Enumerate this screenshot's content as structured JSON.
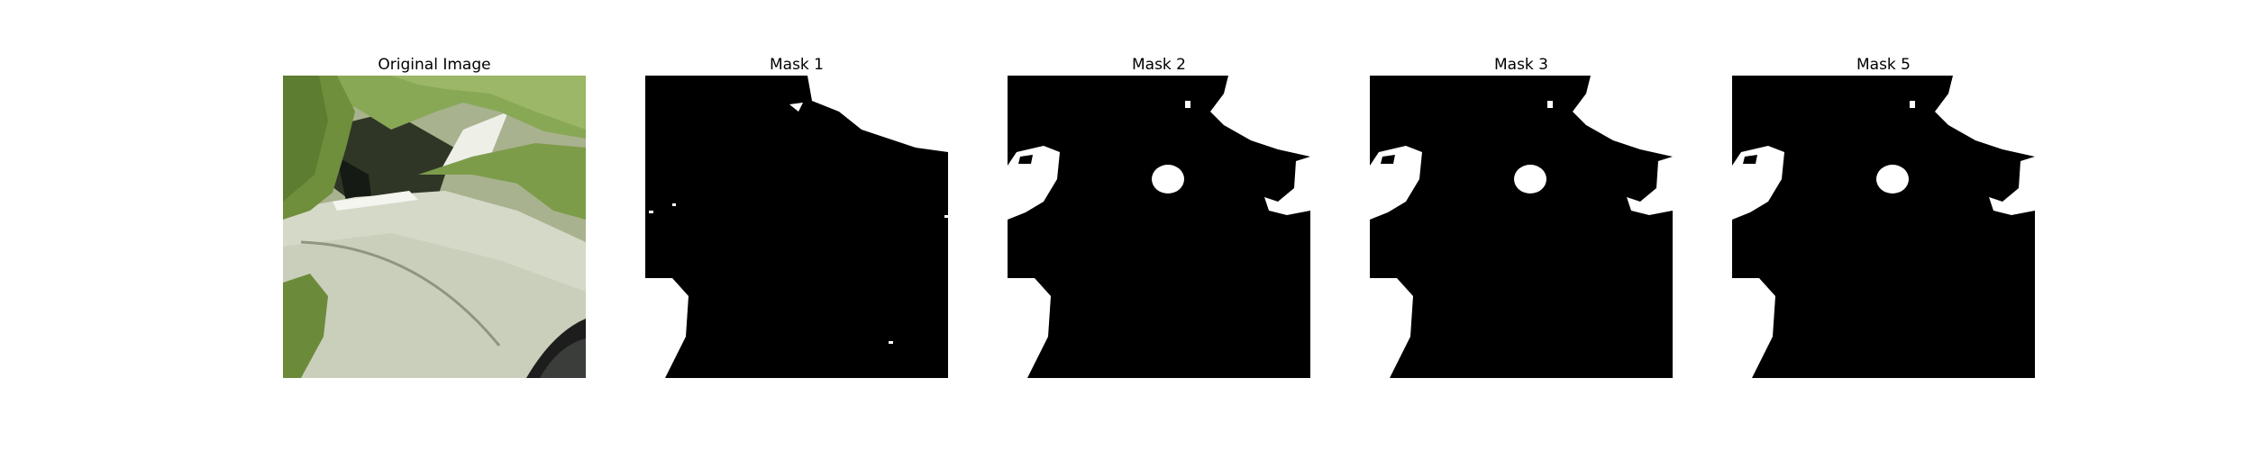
{
  "panels": [
    {
      "id": "original",
      "title": "Original Image"
    },
    {
      "id": "mask-1",
      "title": "Mask 1"
    },
    {
      "id": "mask-2",
      "title": "Mask 2"
    },
    {
      "id": "mask-3",
      "title": "Mask 3"
    },
    {
      "id": "mask-5",
      "title": "Mask 5"
    }
  ],
  "colors": {
    "mask_background": "#000000",
    "mask_foreground": "#ffffff",
    "leaf_green": "#6f8f3c",
    "pot_white": "#d9ddd2"
  }
}
